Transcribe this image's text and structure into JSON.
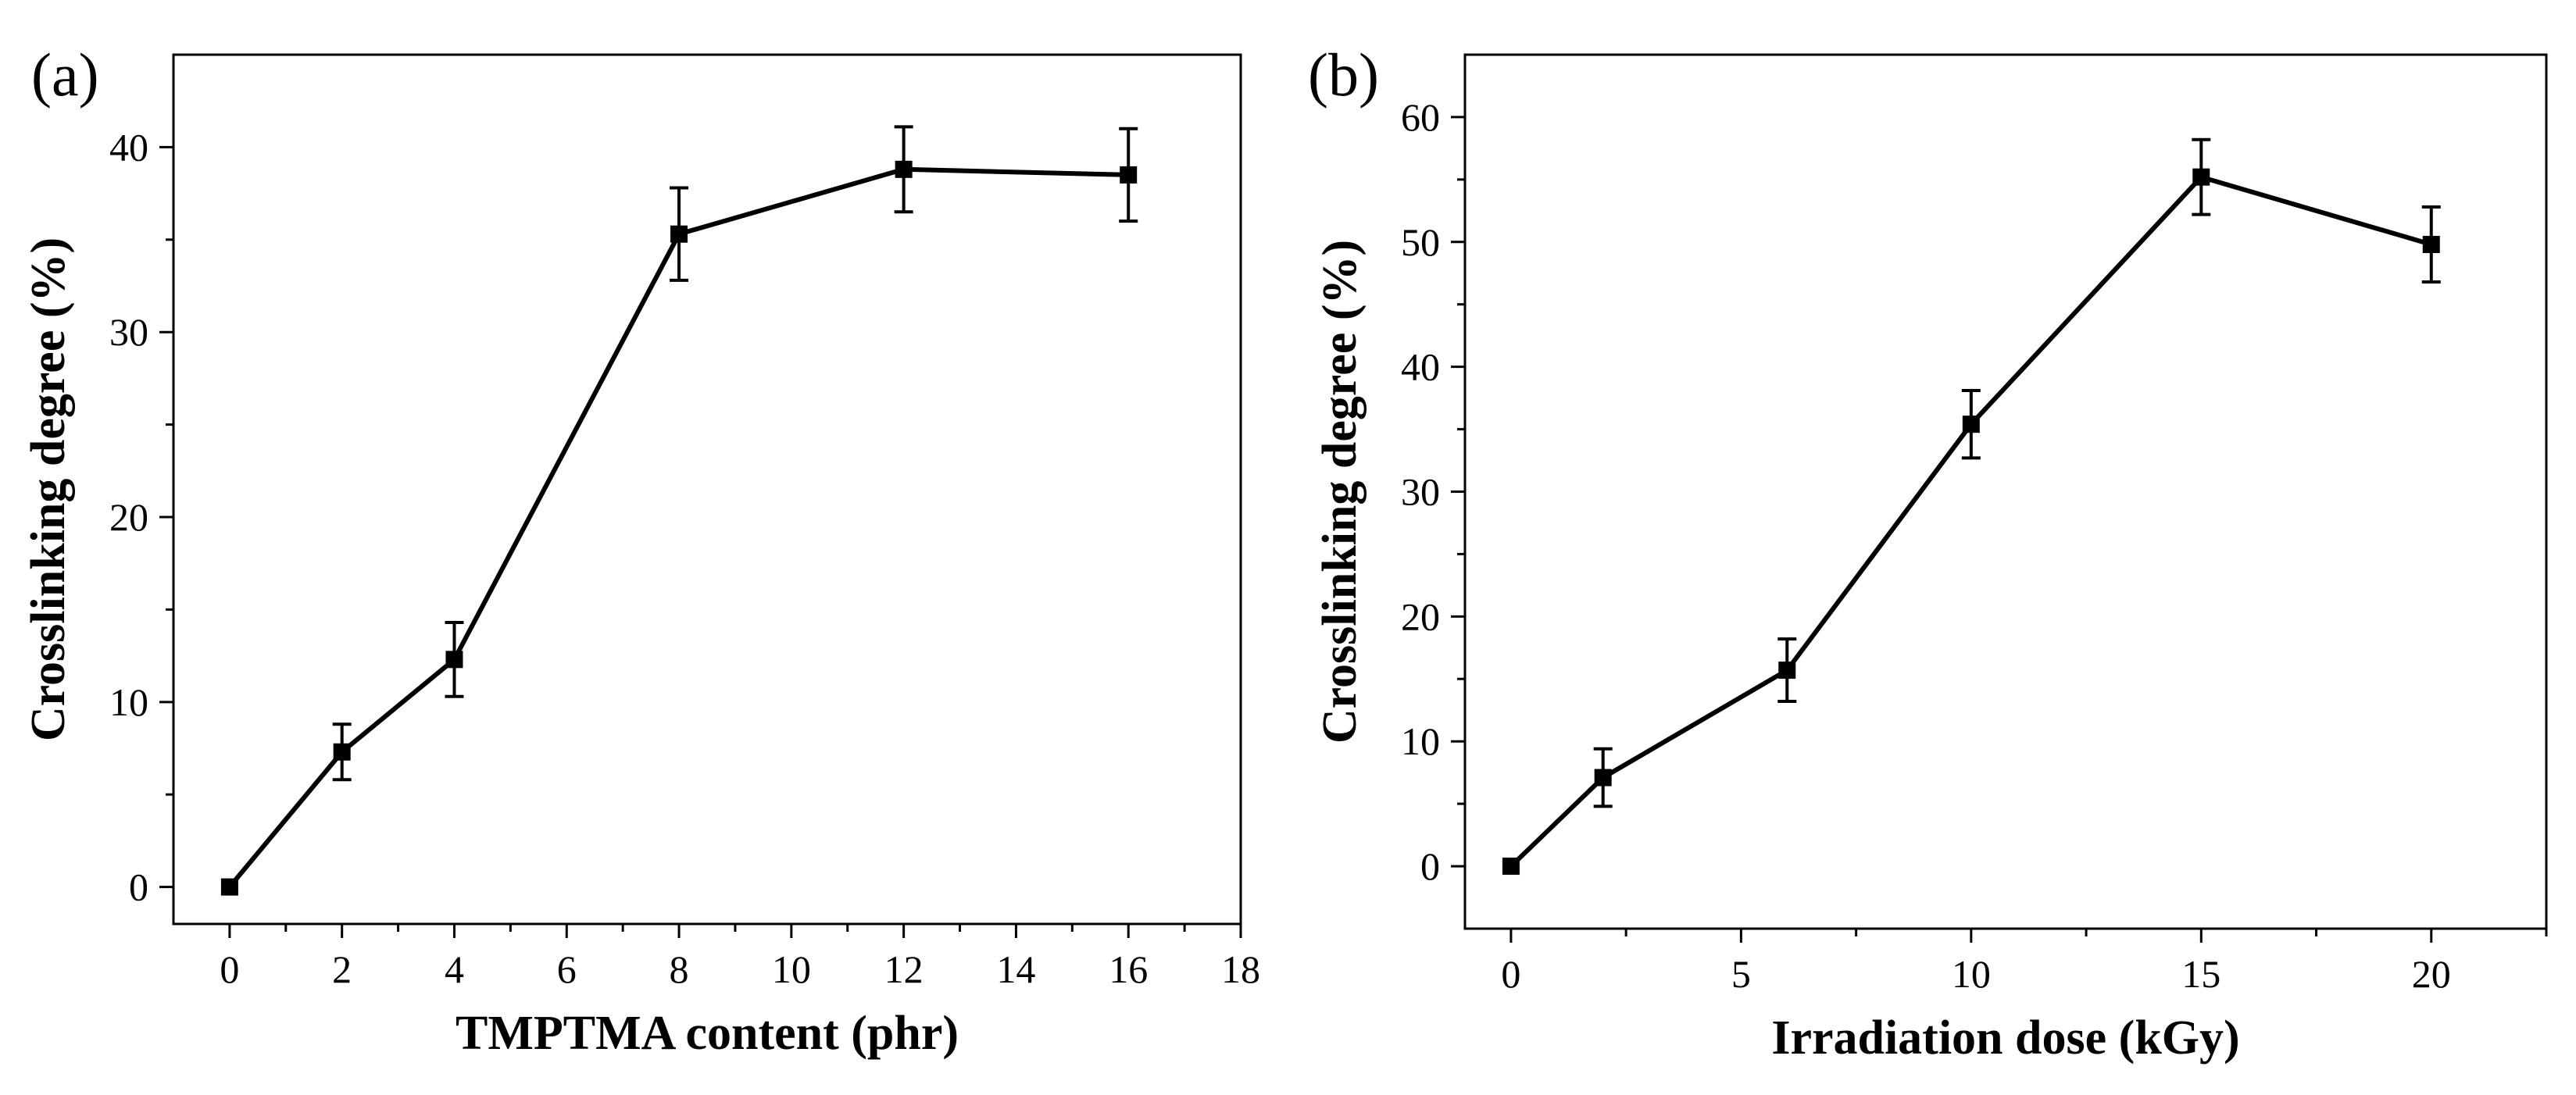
{
  "chart_data": [
    {
      "panel_label": "(a)",
      "type": "line",
      "xlabel": "TMPTMA content (phr)",
      "ylabel": "Crosslinking degree (%)",
      "xlim": [
        -1,
        18
      ],
      "ylim": [
        -2,
        45
      ],
      "xticks": [
        0,
        2,
        4,
        6,
        8,
        10,
        12,
        14,
        16,
        18
      ],
      "yticks": [
        0,
        10,
        20,
        30,
        40
      ],
      "x_minor_ticks": [
        1,
        3,
        5,
        7,
        9,
        11,
        13,
        15,
        17
      ],
      "y_minor_ticks": [
        5,
        15,
        25,
        35
      ],
      "marker": "square",
      "series": [
        {
          "name": "Crosslinking degree",
          "x": [
            0,
            2,
            4,
            8,
            12,
            16
          ],
          "y": [
            0,
            7.3,
            12.3,
            35.3,
            38.8,
            38.5
          ],
          "error": [
            0,
            1.5,
            2.0,
            2.5,
            2.3,
            2.5
          ]
        }
      ]
    },
    {
      "panel_label": "(b)",
      "type": "line",
      "xlabel": "Irradiation dose (kGy)",
      "ylabel": "Crosslinking degree (%)",
      "xlim": [
        -1,
        22.5
      ],
      "ylim": [
        -5,
        65
      ],
      "xticks": [
        0,
        5,
        10,
        15,
        20
      ],
      "yticks": [
        0,
        10,
        20,
        30,
        40,
        50,
        60
      ],
      "x_minor_ticks": [
        2.5,
        7.5,
        12.5,
        17.5,
        22.5
      ],
      "y_minor_ticks": [
        5,
        15,
        25,
        35,
        45,
        55
      ],
      "marker": "square",
      "series": [
        {
          "name": "Crosslinking degree",
          "x": [
            0,
            2,
            6,
            10,
            15,
            20
          ],
          "y": [
            0,
            7.1,
            15.7,
            35.4,
            55.2,
            49.8
          ],
          "error": [
            0,
            2.3,
            2.5,
            2.7,
            3.0,
            3.0
          ]
        }
      ]
    }
  ]
}
